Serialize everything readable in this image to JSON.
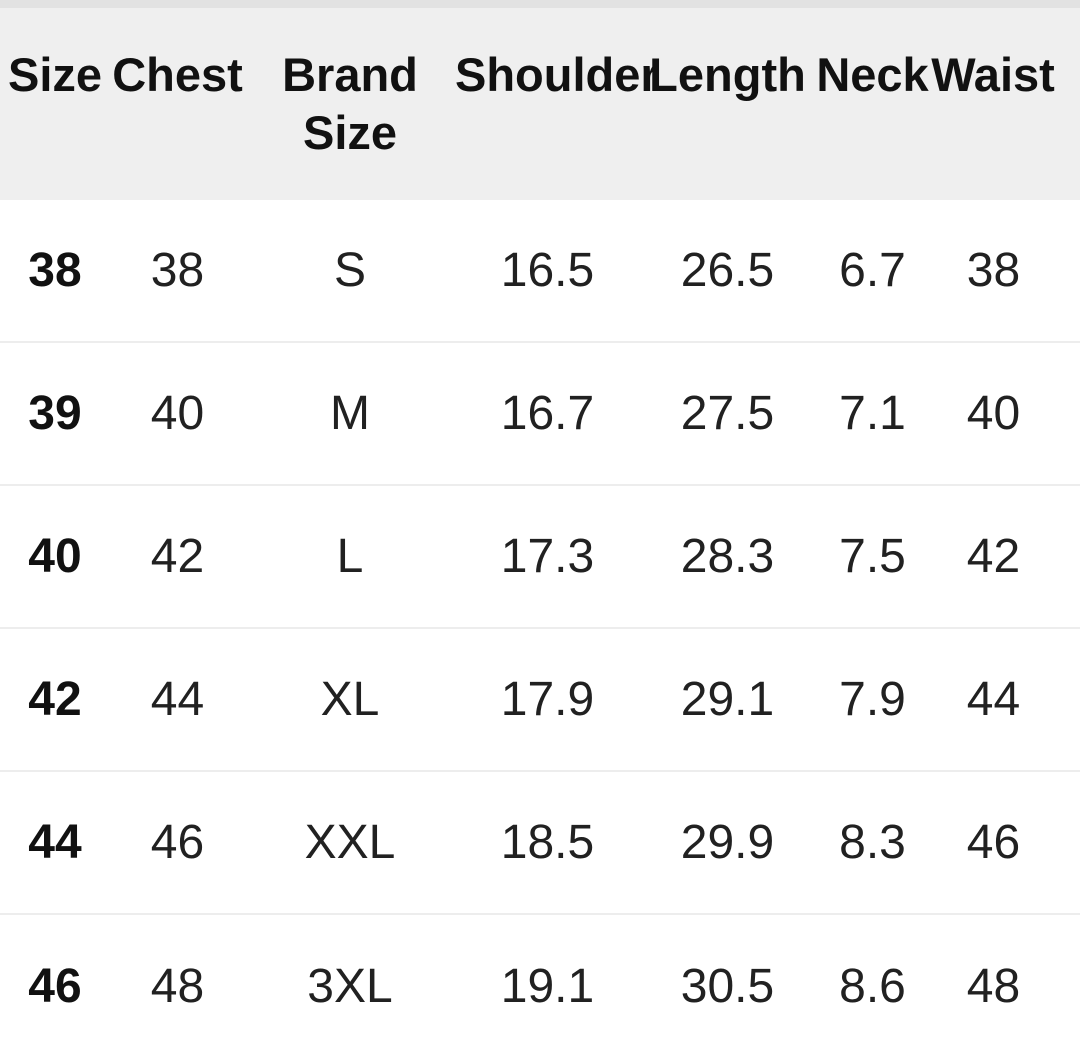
{
  "colors": {
    "header_background": "#efefef",
    "top_edge_strip": "#e2e2e2",
    "row_divider": "#ededed",
    "bottom_edge_strip": "#f2f2f2",
    "header_text": "#111111",
    "body_text": "#212121",
    "body_background": "#ffffff"
  },
  "table": {
    "columns": [
      {
        "id": "size",
        "lines": [
          "Size"
        ]
      },
      {
        "id": "chest",
        "lines": [
          "Chest"
        ]
      },
      {
        "id": "brand-size",
        "lines": [
          "Brand",
          "Size"
        ]
      },
      {
        "id": "shoulder",
        "lines": [
          "Shoulder"
        ]
      },
      {
        "id": "length",
        "lines": [
          "Length"
        ]
      },
      {
        "id": "neck",
        "lines": [
          "Neck"
        ]
      },
      {
        "id": "waist",
        "lines": [
          "Waist"
        ]
      }
    ],
    "rows": [
      [
        "38",
        "38",
        "S",
        "16.5",
        "26.5",
        "6.7",
        "38"
      ],
      [
        "39",
        "40",
        "M",
        "16.7",
        "27.5",
        "7.1",
        "40"
      ],
      [
        "40",
        "42",
        "L",
        "17.3",
        "28.3",
        "7.5",
        "42"
      ],
      [
        "42",
        "44",
        "XL",
        "17.9",
        "29.1",
        "7.9",
        "44"
      ],
      [
        "44",
        "46",
        "XXL",
        "18.5",
        "29.9",
        "8.3",
        "46"
      ],
      [
        "46",
        "48",
        "3XL",
        "19.1",
        "30.5",
        "8.6",
        "48"
      ]
    ]
  }
}
